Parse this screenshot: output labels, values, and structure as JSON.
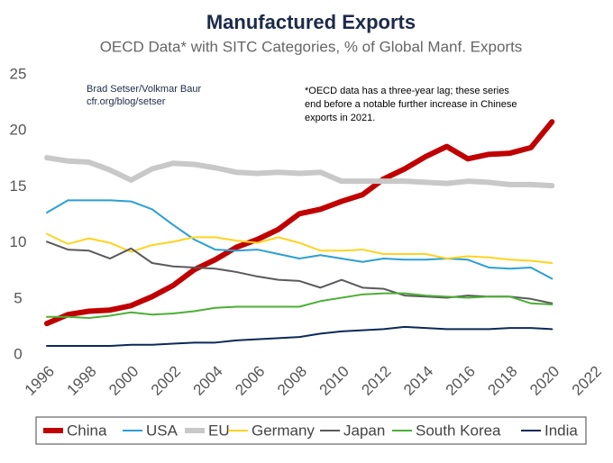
{
  "chart_data": {
    "type": "line",
    "title": "Manufactured Exports",
    "subtitle": "OECD Data* with SITC Categories, % of Global Manf. Exports",
    "annotations": [
      "Brad Setser/Volkmar Baur",
      "cfr.org/blog/setser"
    ],
    "note": [
      "*OECD data has a three-year lag; these series",
      "end before a notable further increase in Chinese",
      "exports in 2021."
    ],
    "x": [
      1996,
      1997,
      1998,
      1999,
      2000,
      2001,
      2002,
      2003,
      2004,
      2005,
      2006,
      2007,
      2008,
      2009,
      2010,
      2011,
      2012,
      2013,
      2014,
      2015,
      2016,
      2017,
      2018,
      2019,
      2020
    ],
    "series": [
      {
        "name": "China",
        "color": "#c00000",
        "values": [
          2.8,
          3.6,
          3.9,
          4.0,
          4.4,
          5.2,
          6.2,
          7.6,
          8.5,
          9.6,
          10.3,
          11.2,
          12.6,
          13.0,
          13.7,
          14.3,
          15.7,
          16.6,
          17.7,
          18.6,
          17.5,
          17.9,
          18.0,
          18.5,
          20.8
        ]
      },
      {
        "name": "USA",
        "color": "#2a9fd6",
        "values": [
          12.7,
          13.8,
          13.8,
          13.8,
          13.7,
          13.0,
          11.6,
          10.3,
          9.4,
          9.3,
          9.4,
          9.0,
          8.6,
          8.9,
          8.6,
          8.3,
          8.6,
          8.5,
          8.5,
          8.6,
          8.5,
          7.8,
          7.7,
          7.8,
          6.8
        ]
      },
      {
        "name": "EU",
        "color": "#c8c8c8",
        "values": [
          17.6,
          17.3,
          17.2,
          16.5,
          15.6,
          16.6,
          17.1,
          17.0,
          16.7,
          16.3,
          16.2,
          16.3,
          16.2,
          16.3,
          15.5,
          15.5,
          15.5,
          15.5,
          15.4,
          15.3,
          15.5,
          15.4,
          15.2,
          15.2,
          15.1
        ]
      },
      {
        "name": "Germany",
        "color": "#ffd320",
        "values": [
          10.8,
          9.9,
          10.4,
          10.0,
          9.2,
          9.8,
          10.1,
          10.5,
          10.5,
          10.2,
          10.0,
          10.5,
          10.0,
          9.3,
          9.3,
          9.4,
          9.0,
          9.0,
          9.0,
          8.6,
          8.8,
          8.7,
          8.5,
          8.4,
          8.2
        ]
      },
      {
        "name": "Japan",
        "color": "#5a5a5a",
        "values": [
          10.1,
          9.4,
          9.3,
          8.6,
          9.5,
          8.2,
          7.9,
          7.8,
          7.7,
          7.4,
          7.0,
          6.7,
          6.6,
          6.0,
          6.7,
          6.0,
          5.9,
          5.3,
          5.2,
          5.1,
          5.3,
          5.2,
          5.2,
          5.0,
          4.6
        ]
      },
      {
        "name": "South Korea",
        "color": "#4caf35",
        "values": [
          3.4,
          3.4,
          3.3,
          3.5,
          3.8,
          3.6,
          3.7,
          3.9,
          4.2,
          4.3,
          4.3,
          4.3,
          4.3,
          4.8,
          5.1,
          5.4,
          5.5,
          5.5,
          5.3,
          5.2,
          5.1,
          5.2,
          5.2,
          4.6,
          4.5
        ]
      },
      {
        "name": "India",
        "color": "#0b2a55",
        "values": [
          0.8,
          0.8,
          0.8,
          0.8,
          0.9,
          0.9,
          1.0,
          1.1,
          1.1,
          1.3,
          1.4,
          1.5,
          1.6,
          1.9,
          2.1,
          2.2,
          2.3,
          2.5,
          2.4,
          2.3,
          2.3,
          2.3,
          2.4,
          2.4,
          2.3
        ]
      }
    ],
    "xlim": [
      1996,
      2022
    ],
    "xticks": [
      1996,
      1998,
      2000,
      2002,
      2004,
      2006,
      2008,
      2010,
      2012,
      2014,
      2016,
      2018,
      2020,
      2022
    ],
    "ylim": [
      0,
      25
    ],
    "yticks": [
      0,
      5,
      10,
      15,
      20,
      25
    ],
    "grid": false,
    "legend": "bottom"
  }
}
